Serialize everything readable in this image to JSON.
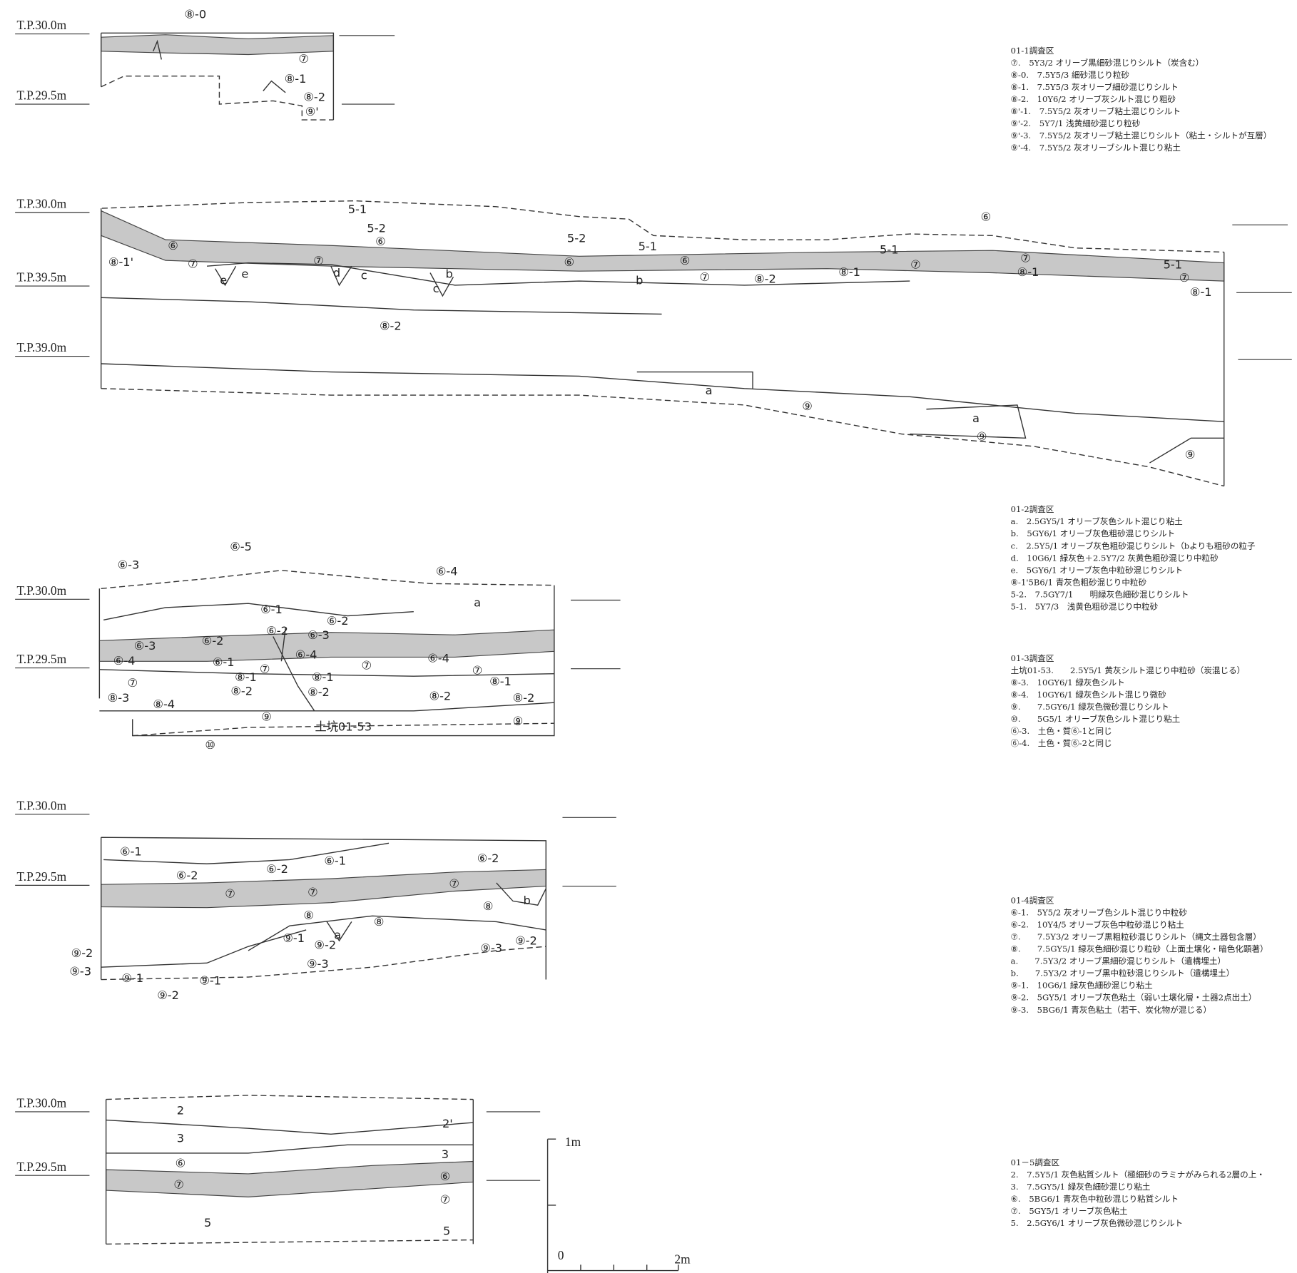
{
  "sections": [
    {
      "levels": [
        "T.P.30.0m",
        "T.P.29.5m"
      ],
      "labels": [
        "⑧-0",
        "⑦",
        "⑧-1",
        "⑧-2",
        "⑨'"
      ]
    },
    {
      "levels": [
        "T.P.30.0m",
        "T.P.39.5m",
        "T.P.39.0m"
      ],
      "labels": [
        "5-1",
        "5-2",
        "5-2",
        "5-1",
        "5-1",
        "5-1",
        "⑥",
        "⑥",
        "⑥",
        "⑥",
        "⑥",
        "⑦",
        "⑦",
        "⑦",
        "⑦",
        "⑦",
        "⑦",
        "⑧-1'",
        "⑧-2",
        "⑧-1",
        "⑧-1",
        "⑧-1",
        "⑧-2",
        "e",
        "e",
        "d",
        "c",
        "b",
        "c",
        "b",
        "a",
        "⑨",
        "a",
        "⑨",
        "⑨"
      ]
    },
    {
      "levels": [
        "T.P.30.0m",
        "T.P.29.5m"
      ],
      "labels": [
        "⑥-3",
        "⑥-5",
        "⑥-4",
        "⑥-1",
        "⑥-2",
        "⑥-2",
        "⑥-3",
        "⑥-3",
        "⑥-2",
        "a",
        "⑥-4",
        "⑥-1",
        "⑦",
        "⑥-4",
        "⑦",
        "⑥-4",
        "⑦",
        "⑦",
        "⑧-1",
        "⑧-1",
        "⑧-1",
        "⑧-3",
        "⑧-2",
        "⑧-2",
        "⑧-2",
        "⑧-2",
        "⑧-4",
        "⑨",
        "⑨",
        "⑩",
        "土坑01-53"
      ]
    },
    {
      "levels": [
        "T.P.30.0m",
        "T.P.29.5m"
      ],
      "labels": [
        "⑥-1",
        "⑥-2",
        "⑥-2",
        "⑥-1",
        "⑥-2",
        "⑦",
        "⑦",
        "⑦",
        "⑧",
        "b",
        "⑧",
        "a",
        "⑧",
        "⑨-1",
        "⑨-2",
        "⑨-2",
        "⑨-2",
        "⑨-3",
        "⑨-3",
        "⑨-3",
        "⑨-1",
        "⑨-1",
        "⑨-2"
      ]
    },
    {
      "levels": [
        "T.P.30.0m",
        "T.P.29.5m"
      ],
      "labels": [
        "2",
        "2'",
        "3",
        "3",
        "⑥",
        "⑥",
        "⑦",
        "⑦",
        "5",
        "5"
      ]
    }
  ],
  "scale": [
    "1m",
    "0",
    "2m"
  ],
  "legends": [
    {
      "title": "01-1調査区",
      "items": [
        "⑦.　5Y3/2 オリーブ黒細砂混じりシルト（炭含む）",
        "⑧-0.　7.5Y5/3 細砂混じり粒砂",
        "⑧-1.　7.5Y5/3 灰オリーブ細砂混じりシルト",
        "⑧-2.　10Y6/2 オリーブ灰シルト混じり粗砂",
        "⑧'-1.　7.5Y5/2 灰オリーブ粘土混じりシルト",
        "⑨'-2.　5Y7/1 浅黄細砂混じり粒砂",
        "⑨'-3.　7.5Y5/2 灰オリーブ粘土混じりシルト（粘土・シルトが互層）",
        "⑨'-4.　7.5Y5/2 灰オリーブシルト混じり粘土"
      ]
    },
    {
      "title": "01-2調査区",
      "items": [
        "a.　2.5GY5/1 オリーブ灰色シルト混じり粘土",
        "b.　5GY6/1 オリーブ灰色粗砂混じりシルト",
        "c.　2.5Y5/1 オリーブ灰色粗砂混じりシルト（bよりも粗砂の粒子",
        "d.　10G6/1 緑灰色＋2.5Y7/2 灰黄色粗砂混じり中粒砂",
        "e.　5GY6/1 オリーブ灰色中粒砂混じりシルト",
        "⑧-1'5B6/1 青灰色粗砂混じり中粒砂",
        "5-2.　7.5GY7/1　　明緑灰色細砂混じりシルト",
        "5-1.　5Y7/3　浅黄色粗砂混じり中粒砂"
      ]
    },
    {
      "title": "01-3調査区",
      "items": [
        "土坑01-53.　　2.5Y5/1 黄灰シルト混じり中粒砂（炭混じる）",
        "⑧-3.　10GY6/1 緑灰色シルト",
        "⑧-4.　10GY6/1 緑灰色シルト混じり微砂",
        "⑨.　　7.5GY6/1 緑灰色微砂混じりシルト",
        "⑩.　　5G5/1 オリーブ灰色シルト混じり粘土",
        "⑥-3.　土色・質⑥-1と同じ",
        "⑥-4.　土色・質⑥-2と同じ"
      ]
    },
    {
      "title": "01-4調査区",
      "items": [
        "⑥-1.　5Y5/2 灰オリーブ色シルト混じり中粒砂",
        "⑥-2.　10Y4/5 オリーブ灰色中粒砂混じり粘土",
        "⑦.　　7.5Y3/2 オリーブ黒粗粒砂混じりシルト（縄文土器包含層）",
        "⑧.　　7.5GY5/1 緑灰色細砂混じり粒砂（上面土壌化・暗色化顕著）",
        "a.　　7.5Y3/2 オリーブ黒細砂混じりシルト（遺構埋土）",
        "b.　　7.5Y3/2 オリーブ黒中粒砂混じりシルト（遺構埋土）",
        "⑨-1.　10G6/1 緑灰色細砂混じり粘土",
        "⑨-2.　5GY5/1 オリーブ灰色粘土（弱い土壌化層・土器2点出土）",
        "⑨-3.　5BG6/1 青灰色粘土（若干、炭化物が混じる）"
      ]
    },
    {
      "title": "01－5調査区",
      "items": [
        "2.　7.5Y5/1 灰色粘質シルト（極細砂のラミナがみられる2層の上・",
        "3.　7.5GY5/1 緑灰色細砂混じり粘土",
        "⑥.　5BG6/1 青灰色中粒砂混じり粘質シルト",
        "⑦.　5GY5/1 オリーブ灰色粘土",
        "5.　2.5GY6/1 オリーブ灰色微砂混じりシルト"
      ]
    }
  ]
}
